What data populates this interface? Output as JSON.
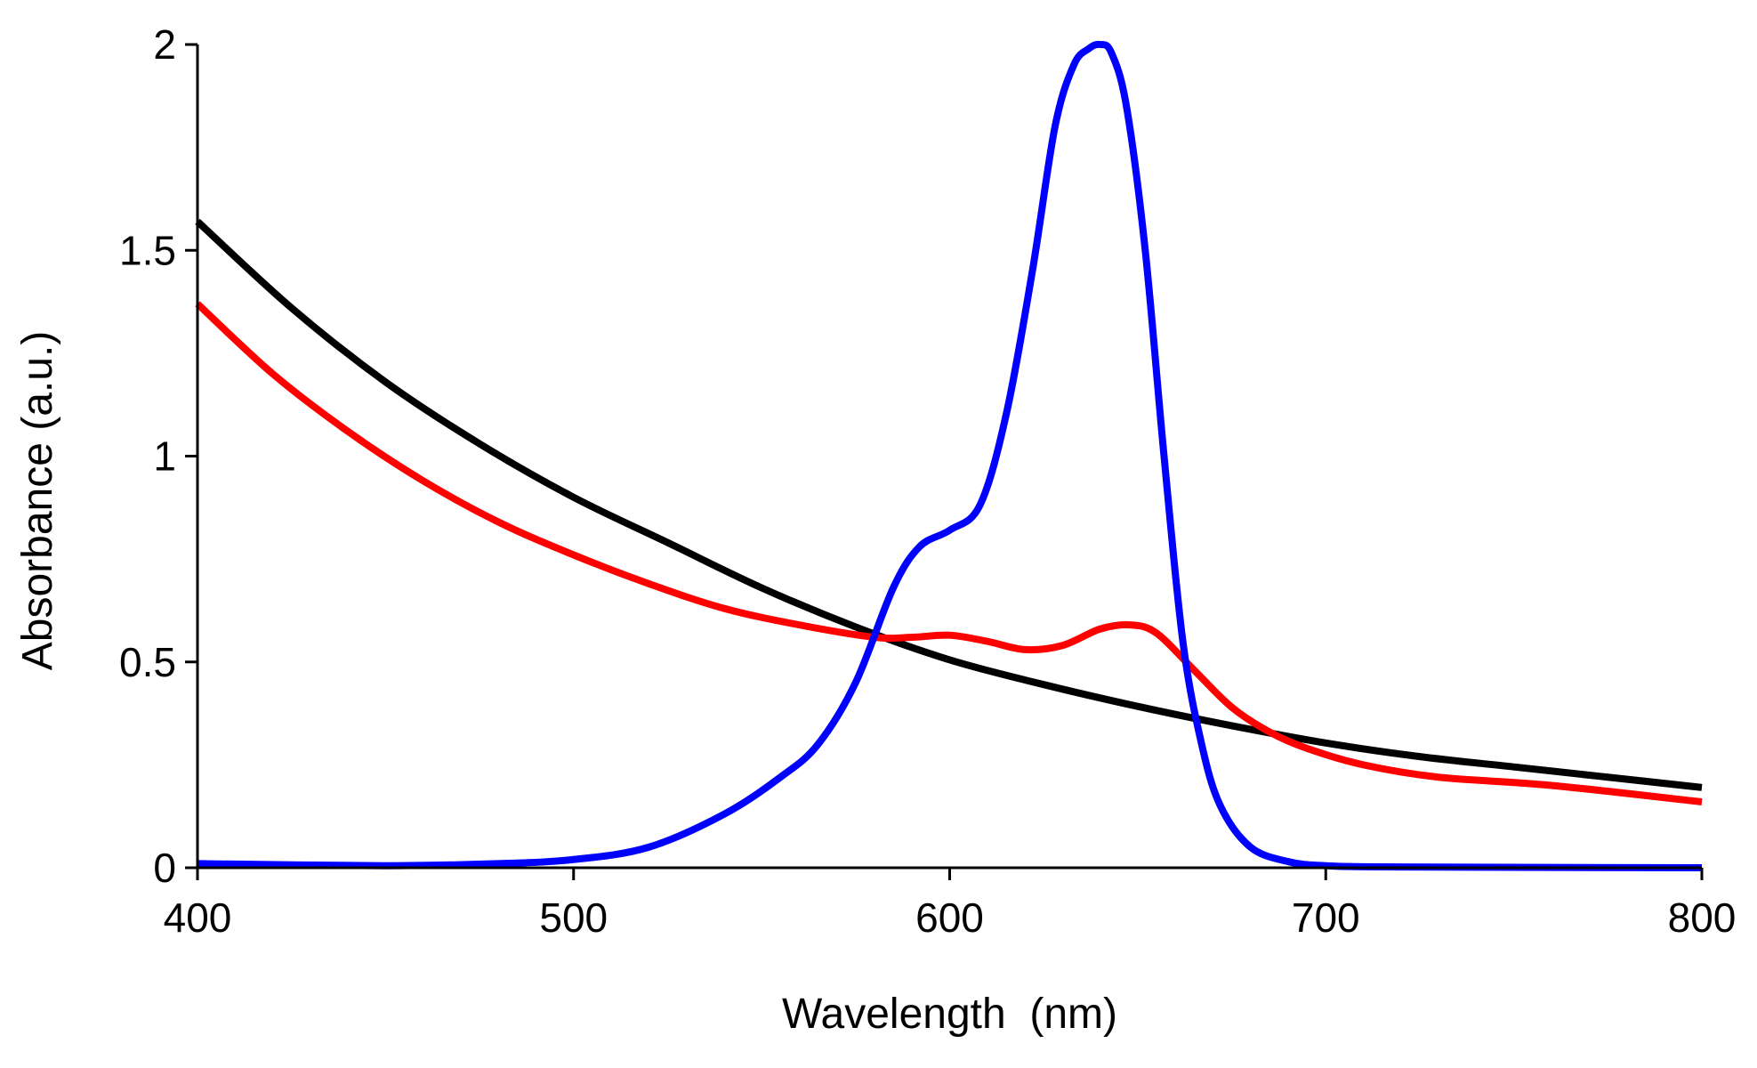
{
  "chart_data": {
    "type": "line",
    "title": "",
    "xlabel": "Wavelength  (nm)",
    "ylabel": "Absorbance (a.u.)",
    "xlim": [
      400,
      800
    ],
    "ylim": [
      0,
      2
    ],
    "xticks": [
      {
        "value": 400,
        "label": "400"
      },
      {
        "value": 500,
        "label": "500"
      },
      {
        "value": 600,
        "label": "600"
      },
      {
        "value": 700,
        "label": "700"
      },
      {
        "value": 800,
        "label": "800"
      }
    ],
    "yticks": [
      {
        "value": 0,
        "label": "0"
      },
      {
        "value": 0.5,
        "label": "0.5"
      },
      {
        "value": 1,
        "label": "1"
      },
      {
        "value": 1.5,
        "label": "1.5"
      },
      {
        "value": 2,
        "label": "2"
      }
    ],
    "grid": false,
    "legend": "none",
    "series": [
      {
        "name": "black",
        "color": "#000000",
        "x": [
          400,
          425,
          450,
          475,
          500,
          525,
          550,
          575,
          600,
          625,
          650,
          675,
          700,
          725,
          750,
          775,
          800
        ],
        "y": [
          1.57,
          1.36,
          1.18,
          1.03,
          0.9,
          0.79,
          0.68,
          0.585,
          0.505,
          0.445,
          0.392,
          0.345,
          0.303,
          0.27,
          0.245,
          0.22,
          0.195
        ]
      },
      {
        "name": "red",
        "color": "#ff0000",
        "x": [
          400,
          420,
          440,
          460,
          480,
          500,
          520,
          540,
          560,
          580,
          590,
          600,
          610,
          620,
          630,
          640,
          648,
          655,
          665,
          675,
          685,
          695,
          710,
          730,
          760,
          800
        ],
        "y": [
          1.37,
          1.2,
          1.06,
          0.94,
          0.84,
          0.76,
          0.69,
          0.63,
          0.59,
          0.56,
          0.56,
          0.565,
          0.55,
          0.53,
          0.54,
          0.58,
          0.59,
          0.57,
          0.48,
          0.39,
          0.33,
          0.29,
          0.25,
          0.22,
          0.2,
          0.16
        ]
      },
      {
        "name": "blue",
        "color": "#0000ff",
        "x": [
          400,
          450,
          480,
          500,
          520,
          540,
          555,
          565,
          575,
          585,
          592,
          600,
          608,
          615,
          622,
          628,
          633,
          637,
          640,
          643,
          647,
          652,
          657,
          662,
          667,
          672,
          680,
          690,
          700,
          720,
          800
        ],
        "y": [
          0.01,
          0.005,
          0.01,
          0.02,
          0.05,
          0.13,
          0.22,
          0.3,
          0.45,
          0.68,
          0.78,
          0.82,
          0.88,
          1.1,
          1.45,
          1.8,
          1.95,
          1.99,
          2.0,
          1.98,
          1.85,
          1.5,
          1.0,
          0.55,
          0.3,
          0.15,
          0.05,
          0.015,
          0.005,
          0.002,
          0.0
        ]
      }
    ]
  }
}
